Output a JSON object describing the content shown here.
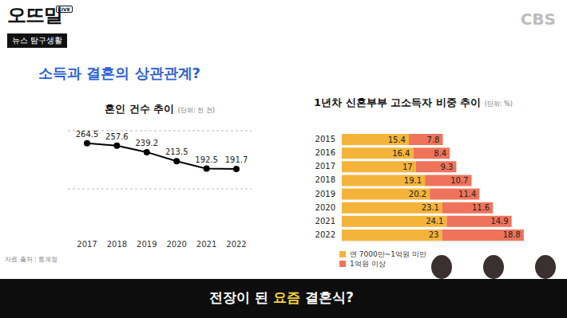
{
  "header": {
    "logo": "오뜨밀",
    "logo_badge": "LIVE",
    "logo_subtitle": "뉴스 탐구생활",
    "broadcaster": "CBS"
  },
  "slide_title": "소득과 결혼의 상관관계?",
  "chart_data": [
    {
      "type": "line",
      "title": "혼인 건수 추이",
      "subtitle": "(단위: 천 건)",
      "categories": [
        "2017",
        "2018",
        "2019",
        "2020",
        "2021",
        "2022"
      ],
      "values": [
        264.5,
        257.6,
        239.2,
        213.5,
        192.5,
        191.7
      ],
      "color": "#000000",
      "marker": "circle",
      "ylim": [
        135,
        300
      ],
      "yticks": [
        135,
        300
      ],
      "grid": true,
      "data_labels": true,
      "tick_labels": "x"
    },
    {
      "type": "bar",
      "title": "1년차 신혼부부 고소득자 비중 추이",
      "subtitle": "(단위: %)",
      "orientation": "horizontal",
      "stacked": true,
      "categories": [
        "2015",
        "2016",
        "2017",
        "2018",
        "2019",
        "2020",
        "2021",
        "2022"
      ],
      "series": [
        {
          "name": "연 7000만~1억원 미만",
          "color": "#f4b43a",
          "values": [
            15.4,
            16.4,
            17,
            19.1,
            20.2,
            23.1,
            24.1,
            23
          ]
        },
        {
          "name": "1억원 이상",
          "color": "#ef735a",
          "values": [
            7.8,
            8.4,
            9.3,
            10.7,
            11.4,
            11.6,
            14.9,
            18.8
          ]
        }
      ],
      "xlim": [
        0,
        42
      ],
      "data_labels": true,
      "tick_labels": "y",
      "legend": "bottom-left"
    }
  ],
  "source": "자료 출처 : 통계청",
  "caption": {
    "before": "전장이 된",
    "highlight": "요즘",
    "after": "결혼식?"
  }
}
